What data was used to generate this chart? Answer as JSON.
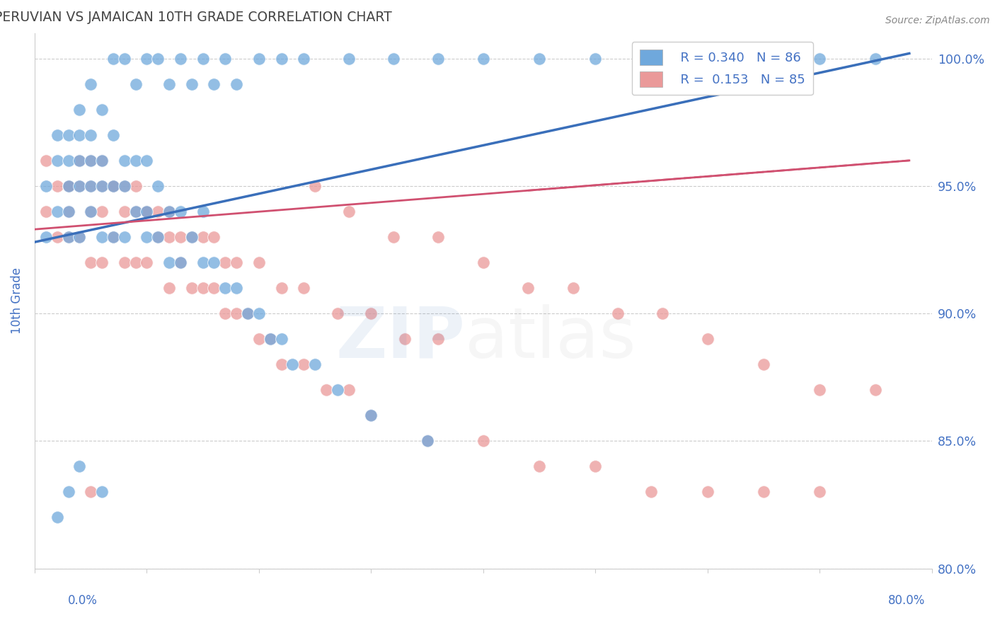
{
  "title": "PERUVIAN VS JAMAICAN 10TH GRADE CORRELATION CHART",
  "source": "Source: ZipAtlas.com",
  "ylabel": "10th Grade",
  "xlim": [
    0.0,
    80.0
  ],
  "ylim": [
    80.0,
    101.0
  ],
  "ytick_vals": [
    80.0,
    85.0,
    90.0,
    95.0,
    100.0
  ],
  "ytick_labels": [
    "80.0%",
    "85.0%",
    "90.0%",
    "95.0%",
    "100.0%"
  ],
  "legend_R_blue": "R = 0.340",
  "legend_N_blue": "N = 86",
  "legend_R_pink": "R =  0.153",
  "legend_N_pink": "N = 85",
  "blue_color": "#6fa8dc",
  "pink_color": "#ea9999",
  "blue_line_color": "#3a6fba",
  "pink_line_color": "#d05070",
  "axis_label_color": "#4472c4",
  "grid_color": "#cccccc",
  "blue_x": [
    1,
    1,
    2,
    2,
    2,
    3,
    3,
    3,
    3,
    3,
    4,
    4,
    4,
    4,
    5,
    5,
    5,
    5,
    6,
    6,
    6,
    7,
    7,
    7,
    8,
    8,
    8,
    9,
    9,
    10,
    10,
    10,
    11,
    11,
    12,
    12,
    13,
    13,
    14,
    15,
    15,
    16,
    17,
    18,
    19,
    20,
    21,
    22,
    23,
    25,
    27,
    30,
    35,
    4,
    5,
    6,
    7,
    8,
    9,
    10,
    11,
    12,
    13,
    14,
    15,
    16,
    17,
    18,
    20,
    22,
    24,
    28,
    32,
    36,
    40,
    45,
    50,
    55,
    60,
    65,
    70,
    75,
    2,
    3,
    4,
    6
  ],
  "blue_y": [
    93,
    95,
    94,
    96,
    97,
    93,
    94,
    95,
    96,
    97,
    93,
    95,
    96,
    97,
    94,
    95,
    96,
    97,
    93,
    95,
    96,
    93,
    95,
    97,
    93,
    95,
    96,
    94,
    96,
    93,
    94,
    96,
    93,
    95,
    92,
    94,
    92,
    94,
    93,
    92,
    94,
    92,
    91,
    91,
    90,
    90,
    89,
    89,
    88,
    88,
    87,
    86,
    85,
    98,
    99,
    98,
    100,
    100,
    99,
    100,
    100,
    99,
    100,
    99,
    100,
    99,
    100,
    99,
    100,
    100,
    100,
    100,
    100,
    100,
    100,
    100,
    100,
    100,
    100,
    100,
    100,
    100,
    82,
    83,
    84,
    83
  ],
  "pink_x": [
    1,
    1,
    2,
    2,
    3,
    3,
    3,
    4,
    4,
    5,
    5,
    5,
    6,
    6,
    6,
    7,
    7,
    8,
    8,
    9,
    9,
    10,
    10,
    11,
    12,
    12,
    13,
    14,
    15,
    16,
    17,
    18,
    19,
    20,
    21,
    22,
    24,
    26,
    28,
    30,
    35,
    40,
    45,
    50,
    55,
    60,
    65,
    70,
    3,
    4,
    5,
    6,
    7,
    8,
    9,
    10,
    11,
    12,
    13,
    14,
    15,
    16,
    17,
    18,
    20,
    22,
    24,
    27,
    30,
    33,
    36,
    25,
    28,
    32,
    36,
    40,
    44,
    48,
    52,
    56,
    60,
    65,
    70,
    75,
    5
  ],
  "pink_y": [
    94,
    96,
    93,
    95,
    93,
    94,
    95,
    93,
    95,
    92,
    94,
    95,
    92,
    94,
    95,
    93,
    95,
    92,
    94,
    92,
    94,
    92,
    94,
    93,
    91,
    93,
    92,
    91,
    91,
    91,
    90,
    90,
    90,
    89,
    89,
    88,
    88,
    87,
    87,
    86,
    85,
    85,
    84,
    84,
    83,
    83,
    83,
    83,
    95,
    96,
    96,
    96,
    95,
    95,
    95,
    94,
    94,
    94,
    93,
    93,
    93,
    93,
    92,
    92,
    92,
    91,
    91,
    90,
    90,
    89,
    89,
    95,
    94,
    93,
    93,
    92,
    91,
    91,
    90,
    90,
    89,
    88,
    87,
    87,
    83
  ]
}
